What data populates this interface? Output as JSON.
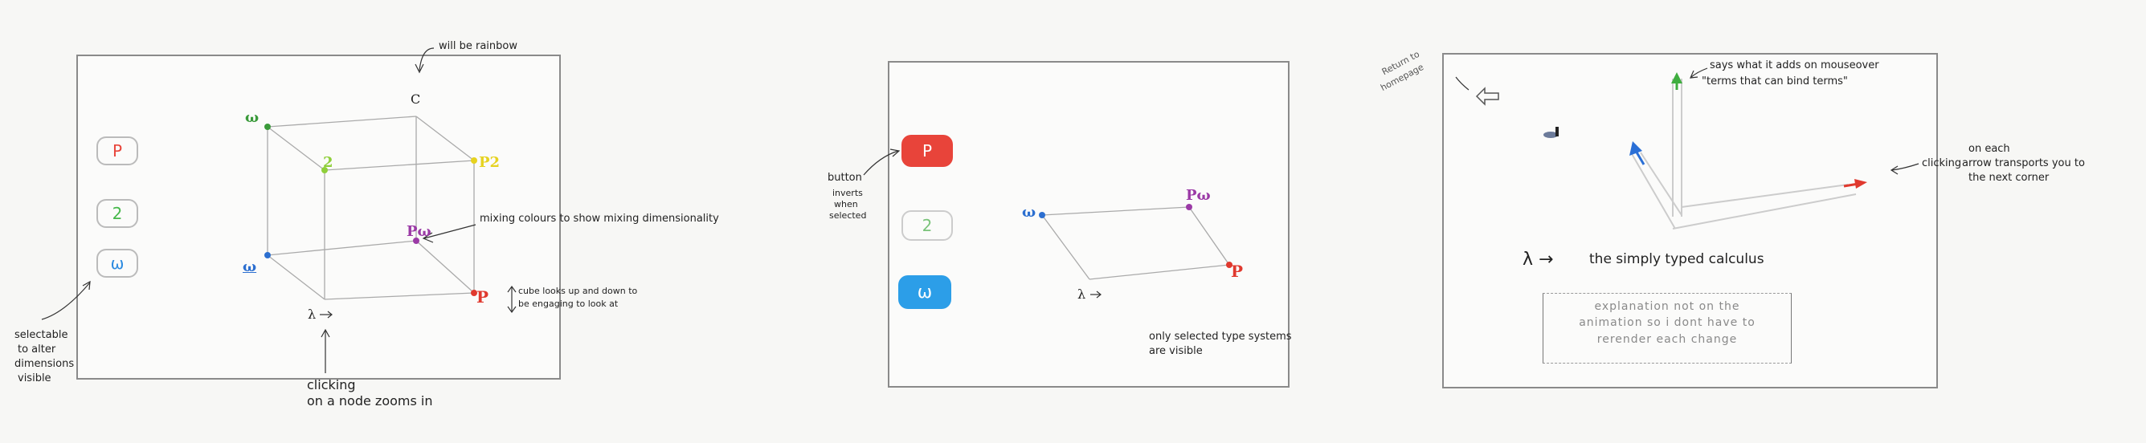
{
  "panel1": {
    "buttons": [
      {
        "label": "P",
        "color": "#e8443a"
      },
      {
        "label": "2",
        "color": "#46b84a"
      },
      {
        "label": "ω",
        "color": "#2c8be0"
      }
    ],
    "nodes": {
      "top_omega": "ω",
      "top_c": "C",
      "mid_2": "2",
      "p2": "P2",
      "pomega": "Pω",
      "omega": "ω",
      "lambda": "λ",
      "p": "P"
    },
    "notes": {
      "rainbow": "will be rainbow",
      "mixing": "mixing colours to show mixing dimensionality",
      "cube_line1": "cube looks up and down to",
      "cube_line2": "be engaging to look at",
      "selectable_line1": "selectable",
      "selectable_line2": "to alter",
      "selectable_line3": "dimensions",
      "selectable_line4": "visible",
      "clicking_line1": "clicking",
      "clicking_line2": "on a node zooms in",
      "lambda_arrow": "→"
    }
  },
  "panel2": {
    "buttons": [
      {
        "label": "P",
        "color": "#e8443a"
      },
      {
        "label": "2",
        "color": "#7ac37a"
      },
      {
        "label": "ω",
        "color": "#2c9ee8"
      }
    ],
    "nodes": {
      "omega": "ω",
      "pomega": "Pω",
      "lambda": "λ",
      "p": "P"
    },
    "notes": {
      "button_line1": "button",
      "button_line2": "inverts",
      "button_line3": "when",
      "button_line4": "selected",
      "visible_line1": "only selected type systems",
      "visible_line2": "are visible",
      "lambda_arrow": "→"
    }
  },
  "panel3": {
    "notes": {
      "return_line1": "Return to",
      "return_line2": "homepage",
      "says_line1": "says what it adds on mouseover",
      "says_line2": "\"terms that can bind terms\"",
      "clicking_line1": "clicking",
      "clicking_line2": "on each",
      "clicking_line3": "arrow transports you to",
      "clicking_line4": "the next corner",
      "calculus": "the simply typed calculus",
      "lambda": "λ →"
    },
    "explanation": {
      "line1": "explanation not on the",
      "line2": "animation so i dont have to",
      "line3": "rerender each change"
    },
    "colors": {
      "up": "#3fae3f",
      "diag": "#2a6fd6",
      "right": "#e0392e"
    }
  }
}
